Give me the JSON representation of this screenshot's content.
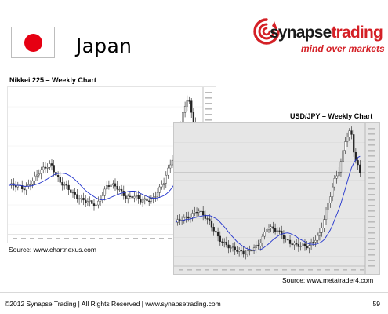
{
  "slide": {
    "title": "Japan",
    "flag_icon": "japan-flag-icon",
    "flag_colors": {
      "field": "#ffffff",
      "disc": "#e60012"
    }
  },
  "logo": {
    "icon": "spiral-logo-icon",
    "word_part1": "synapse",
    "word_part2": "trading",
    "tagline": "mind over markets",
    "colors": {
      "dark": "#1a1a1a",
      "red": "#d42026"
    }
  },
  "charts": [
    {
      "title": "Nikkei 225 – Weekly Chart",
      "source": "Source: www.chartnexus.com",
      "background": "#ffffff",
      "moving_average_color": "#2233cc"
    },
    {
      "title": "USD/JPY – Weekly Chart",
      "source": "Source: www.metatrader4.com",
      "background": "#e6e6e6",
      "moving_average_color": "#2233cc"
    }
  ],
  "footer": {
    "copyright": "©2012 Synapse Trading | All Rights Reserved | www.synapsetrading.com",
    "page_number": "59"
  }
}
